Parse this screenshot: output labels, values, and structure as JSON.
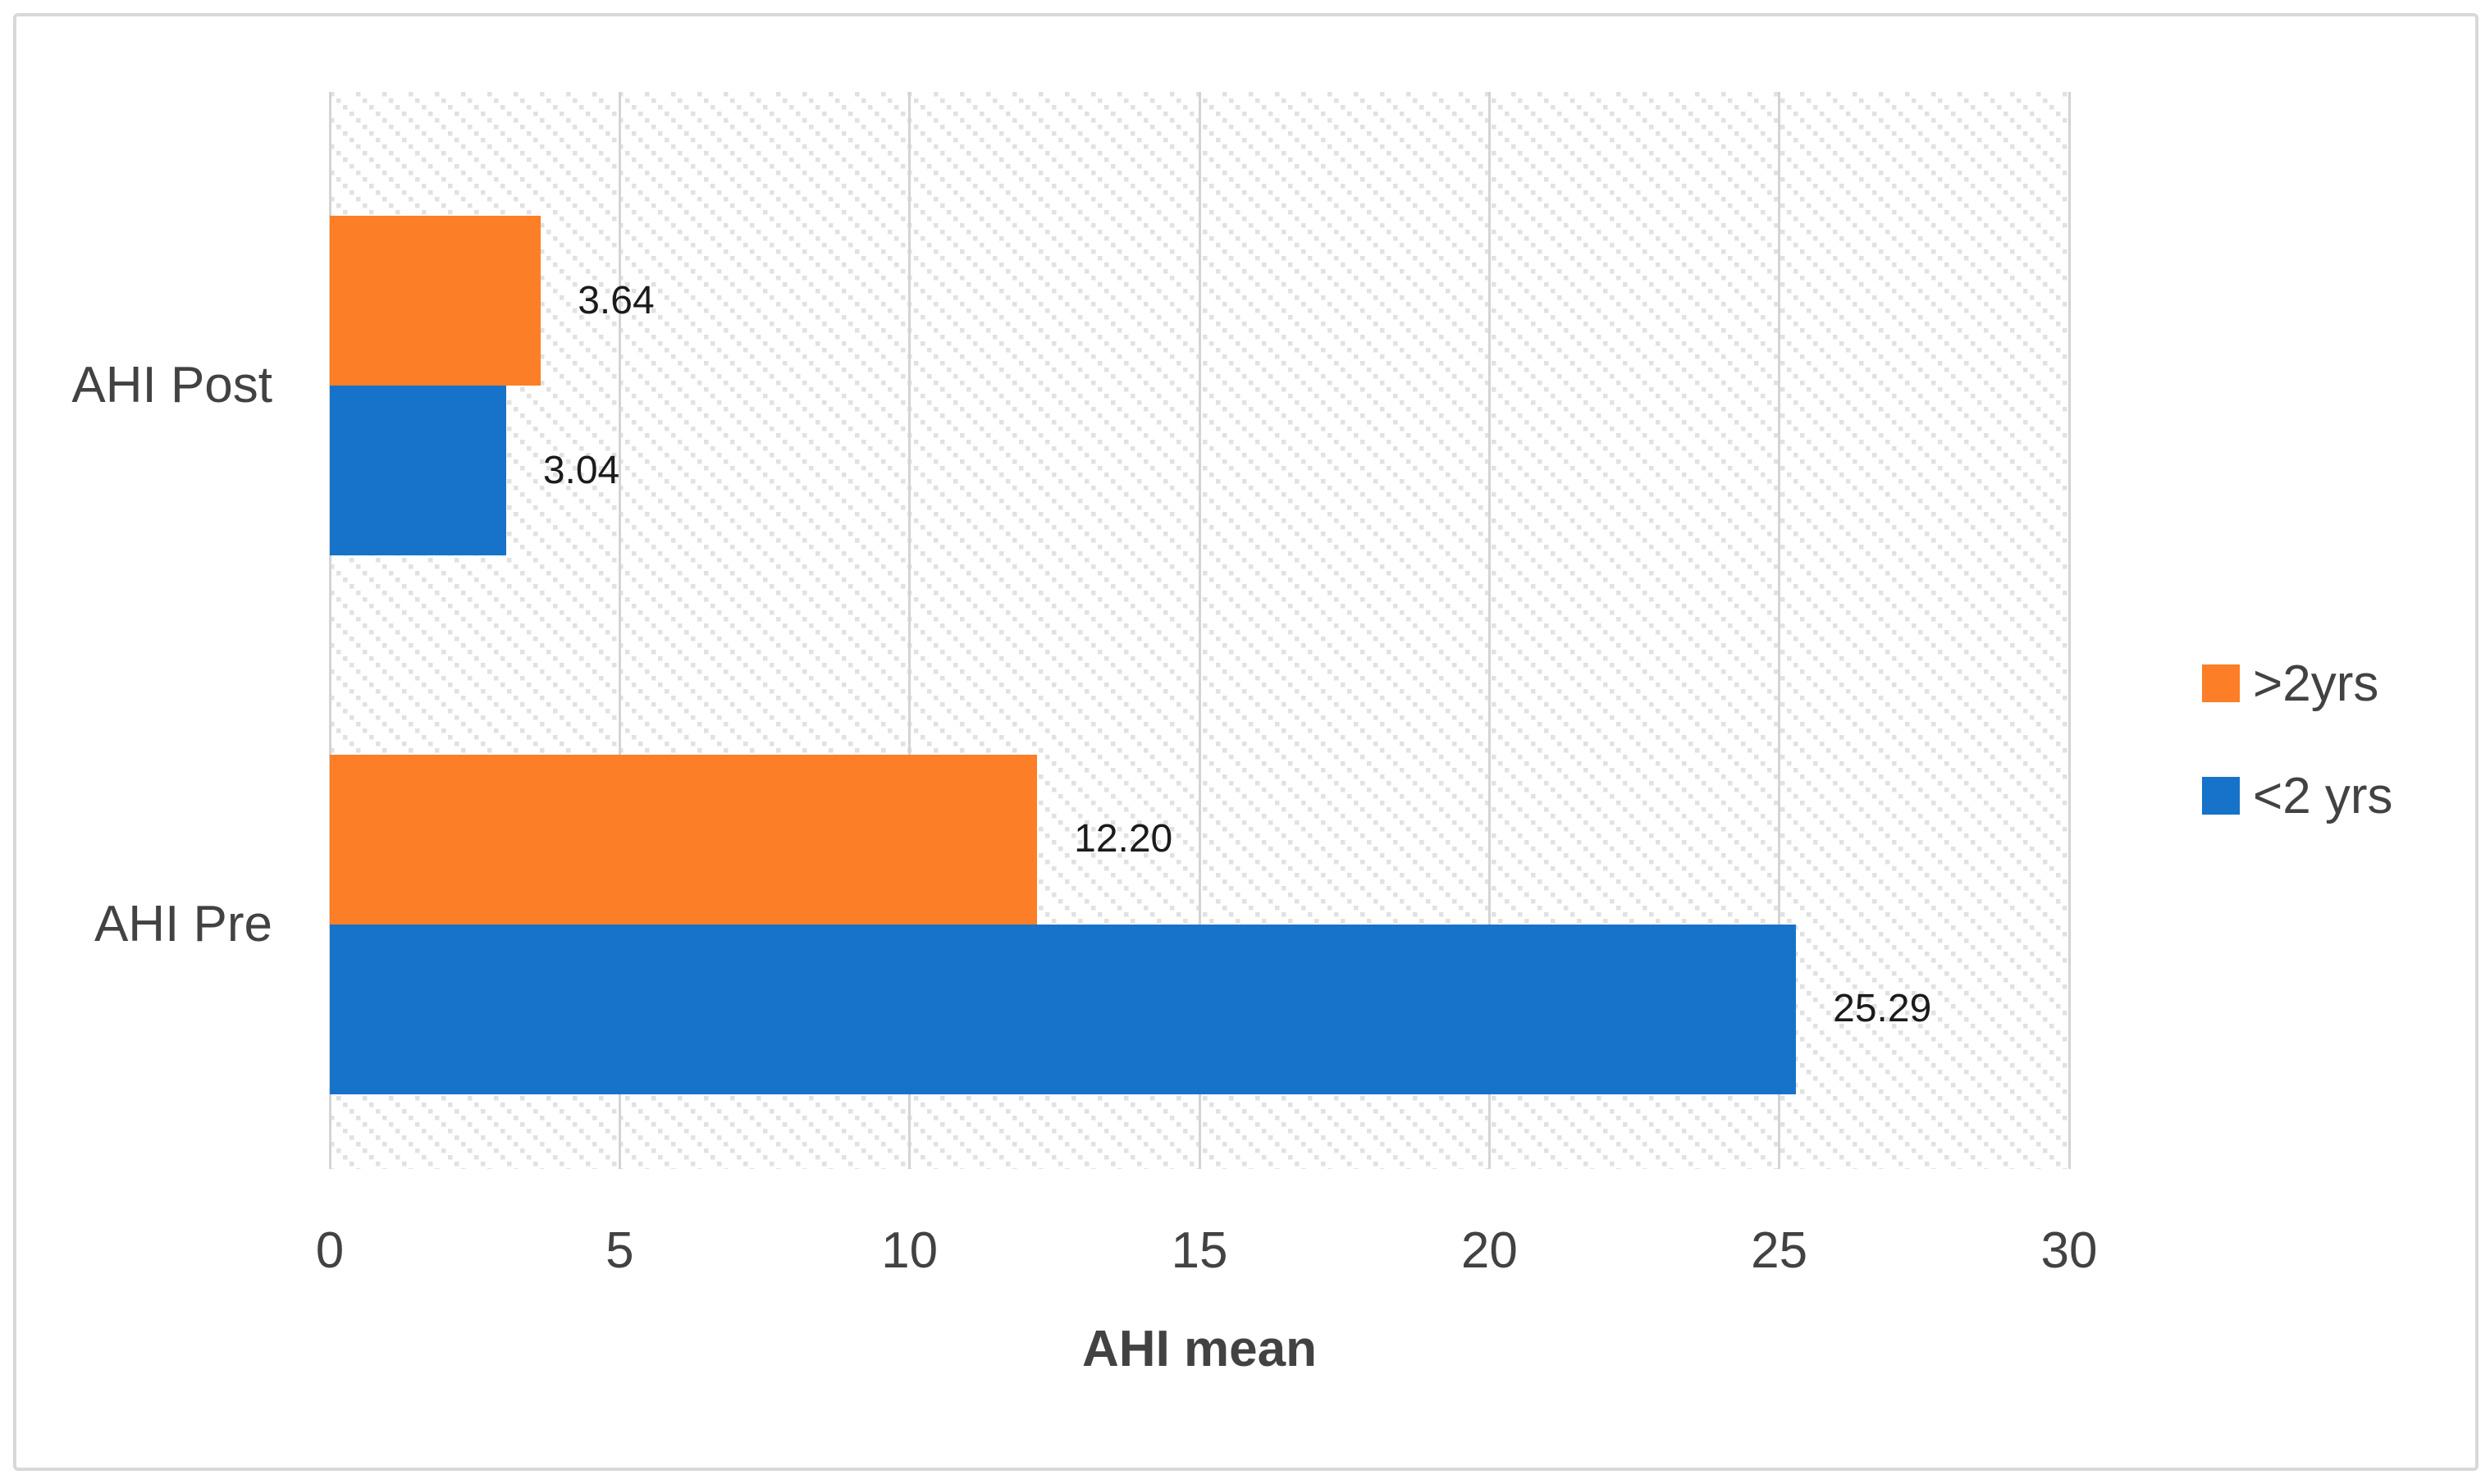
{
  "chart_data": {
    "type": "bar",
    "orientation": "horizontal",
    "title": "",
    "xlabel": "AHI mean",
    "ylabel": "",
    "categories": [
      "AHI Post",
      "AHI Pre"
    ],
    "series": [
      {
        "name": ">2yrs",
        "color": "#FC7E26",
        "values": [
          3.64,
          12.2
        ],
        "value_labels": [
          "3.64",
          "12.20"
        ]
      },
      {
        "name": "<2 yrs",
        "color": "#1773C9",
        "values": [
          3.04,
          25.29
        ],
        "value_labels": [
          "3.04",
          "25.29"
        ]
      }
    ],
    "xlim": [
      0,
      30
    ],
    "xticks": [
      "0",
      "5",
      "10",
      "15",
      "20",
      "25",
      "30"
    ],
    "grid": "vertical",
    "legend_position": "right",
    "plot_background": "diagonal-dotted-hatch"
  },
  "palette": {
    "orange_series": "#FC7E26",
    "blue_series": "#1773C9",
    "gridline": "#d4d4d4",
    "hatch_dot": "#e1e1e1",
    "frame_border": "#d8d8d8",
    "axis_text": "#424242",
    "value_text": "#1b1b1b"
  }
}
